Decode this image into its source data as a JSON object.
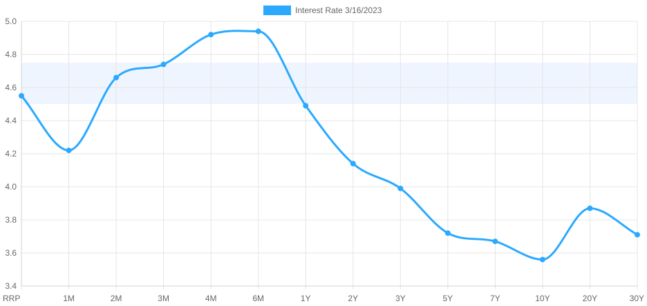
{
  "chart_data": {
    "type": "line",
    "categories": [
      "RRP",
      "1M",
      "2M",
      "3M",
      "4M",
      "6M",
      "1Y",
      "2Y",
      "3Y",
      "5Y",
      "7Y",
      "10Y",
      "20Y",
      "30Y"
    ],
    "series": [
      {
        "name": "Interest Rate 3/16/2023",
        "values": [
          4.55,
          4.22,
          4.66,
          4.74,
          4.92,
          4.94,
          4.49,
          4.14,
          3.99,
          3.72,
          3.67,
          3.56,
          3.87,
          3.71
        ],
        "color": "#2aa9ff"
      }
    ],
    "band": {
      "from": 4.5,
      "to": 4.75,
      "color": "#eef5ff"
    },
    "ylim": [
      3.4,
      5.0
    ],
    "yticks": [
      3.4,
      3.6,
      3.8,
      4.0,
      4.2,
      4.4,
      4.6,
      4.8,
      5.0
    ],
    "legend_position": "top-center",
    "grid": true,
    "title": "",
    "xlabel": "",
    "ylabel": ""
  }
}
